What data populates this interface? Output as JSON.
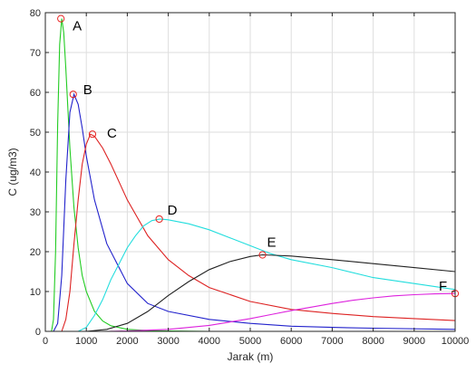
{
  "chart_data": {
    "type": "line",
    "xlabel": "Jarak (m)",
    "ylabel": "C (ug/m3)",
    "xlim": [
      0,
      10000
    ],
    "ylim": [
      0,
      80
    ],
    "xticks": [
      0,
      1000,
      2000,
      3000,
      4000,
      5000,
      6000,
      7000,
      8000,
      9000,
      10000
    ],
    "yticks": [
      0,
      10,
      20,
      30,
      40,
      50,
      60,
      70,
      80
    ],
    "grid": true,
    "series": [
      {
        "name": "A",
        "color": "#22cc22",
        "x": [
          150,
          200,
          250,
          300,
          350,
          400,
          450,
          500,
          600,
          700,
          800,
          900,
          1000,
          1200,
          1400,
          1600,
          2000,
          2500,
          3000,
          4000,
          5000,
          10000
        ],
        "y": [
          0,
          3,
          20,
          52,
          72,
          78.5,
          75,
          66,
          46,
          31,
          21,
          14,
          10,
          5,
          2.6,
          1.4,
          0.5,
          0.2,
          0.1,
          0,
          0,
          0
        ]
      },
      {
        "name": "B",
        "color": "#2222cc",
        "x": [
          200,
          300,
          400,
          500,
          600,
          700,
          800,
          900,
          1000,
          1200,
          1500,
          2000,
          2500,
          3000,
          4000,
          5000,
          6000,
          7000,
          8000,
          10000
        ],
        "y": [
          0,
          2,
          14,
          38,
          55,
          59.5,
          57,
          51,
          44,
          33,
          22,
          12,
          7,
          5,
          3,
          2,
          1.3,
          1,
          0.8,
          0.5
        ]
      },
      {
        "name": "C",
        "color": "#dd2222",
        "x": [
          400,
          500,
          600,
          700,
          800,
          900,
          1000,
          1100,
          1200,
          1400,
          1600,
          2000,
          2500,
          3000,
          3500,
          4000,
          5000,
          6000,
          7000,
          8000,
          9000,
          10000
        ],
        "y": [
          0,
          3,
          10,
          22,
          33,
          42,
          47,
          49.5,
          49,
          46,
          42,
          33,
          24,
          18,
          14,
          11,
          7.5,
          5.5,
          4.5,
          3.7,
          3.2,
          2.7
        ]
      },
      {
        "name": "D",
        "color": "#22dddd",
        "x": [
          800,
          1000,
          1200,
          1400,
          1600,
          1800,
          2000,
          2200,
          2400,
          2600,
          2800,
          3000,
          3500,
          4000,
          4500,
          5000,
          5500,
          6000,
          7000,
          8000,
          9000,
          10000
        ],
        "y": [
          0,
          1,
          4,
          8,
          13,
          17,
          21,
          24,
          26.5,
          27.8,
          28.2,
          28,
          27,
          25.5,
          23.5,
          21.5,
          19.5,
          18,
          16,
          13.5,
          12,
          10.5
        ]
      },
      {
        "name": "E",
        "color": "#222222",
        "x": [
          1000,
          1500,
          2000,
          2500,
          3000,
          3500,
          4000,
          4500,
          5000,
          5300,
          5600,
          6000,
          7000,
          8000,
          9000,
          10000
        ],
        "y": [
          0,
          0.5,
          2,
          5,
          9,
          12.5,
          15.5,
          17.5,
          18.8,
          19.2,
          19.1,
          18.9,
          18,
          17,
          16,
          15
        ]
      },
      {
        "name": "F",
        "color": "#dd22dd",
        "x": [
          1500,
          2000,
          3000,
          4000,
          5000,
          5500,
          6000,
          6500,
          7000,
          7500,
          8000,
          8500,
          9000,
          9500,
          10000
        ],
        "y": [
          0,
          0.1,
          0.5,
          1.5,
          3.2,
          4.2,
          5.2,
          6.1,
          7,
          7.8,
          8.4,
          8.9,
          9.2,
          9.4,
          9.5
        ]
      }
    ],
    "peaks": [
      {
        "label": "A",
        "x": 380,
        "y": 78.5
      },
      {
        "label": "B",
        "x": 680,
        "y": 59.5
      },
      {
        "label": "C",
        "x": 1150,
        "y": 49.5
      },
      {
        "label": "D",
        "x": 2780,
        "y": 28.2
      },
      {
        "label": "E",
        "x": 5300,
        "y": 19.2
      },
      {
        "label": "F",
        "x": 10000,
        "y": 9.5
      }
    ]
  }
}
